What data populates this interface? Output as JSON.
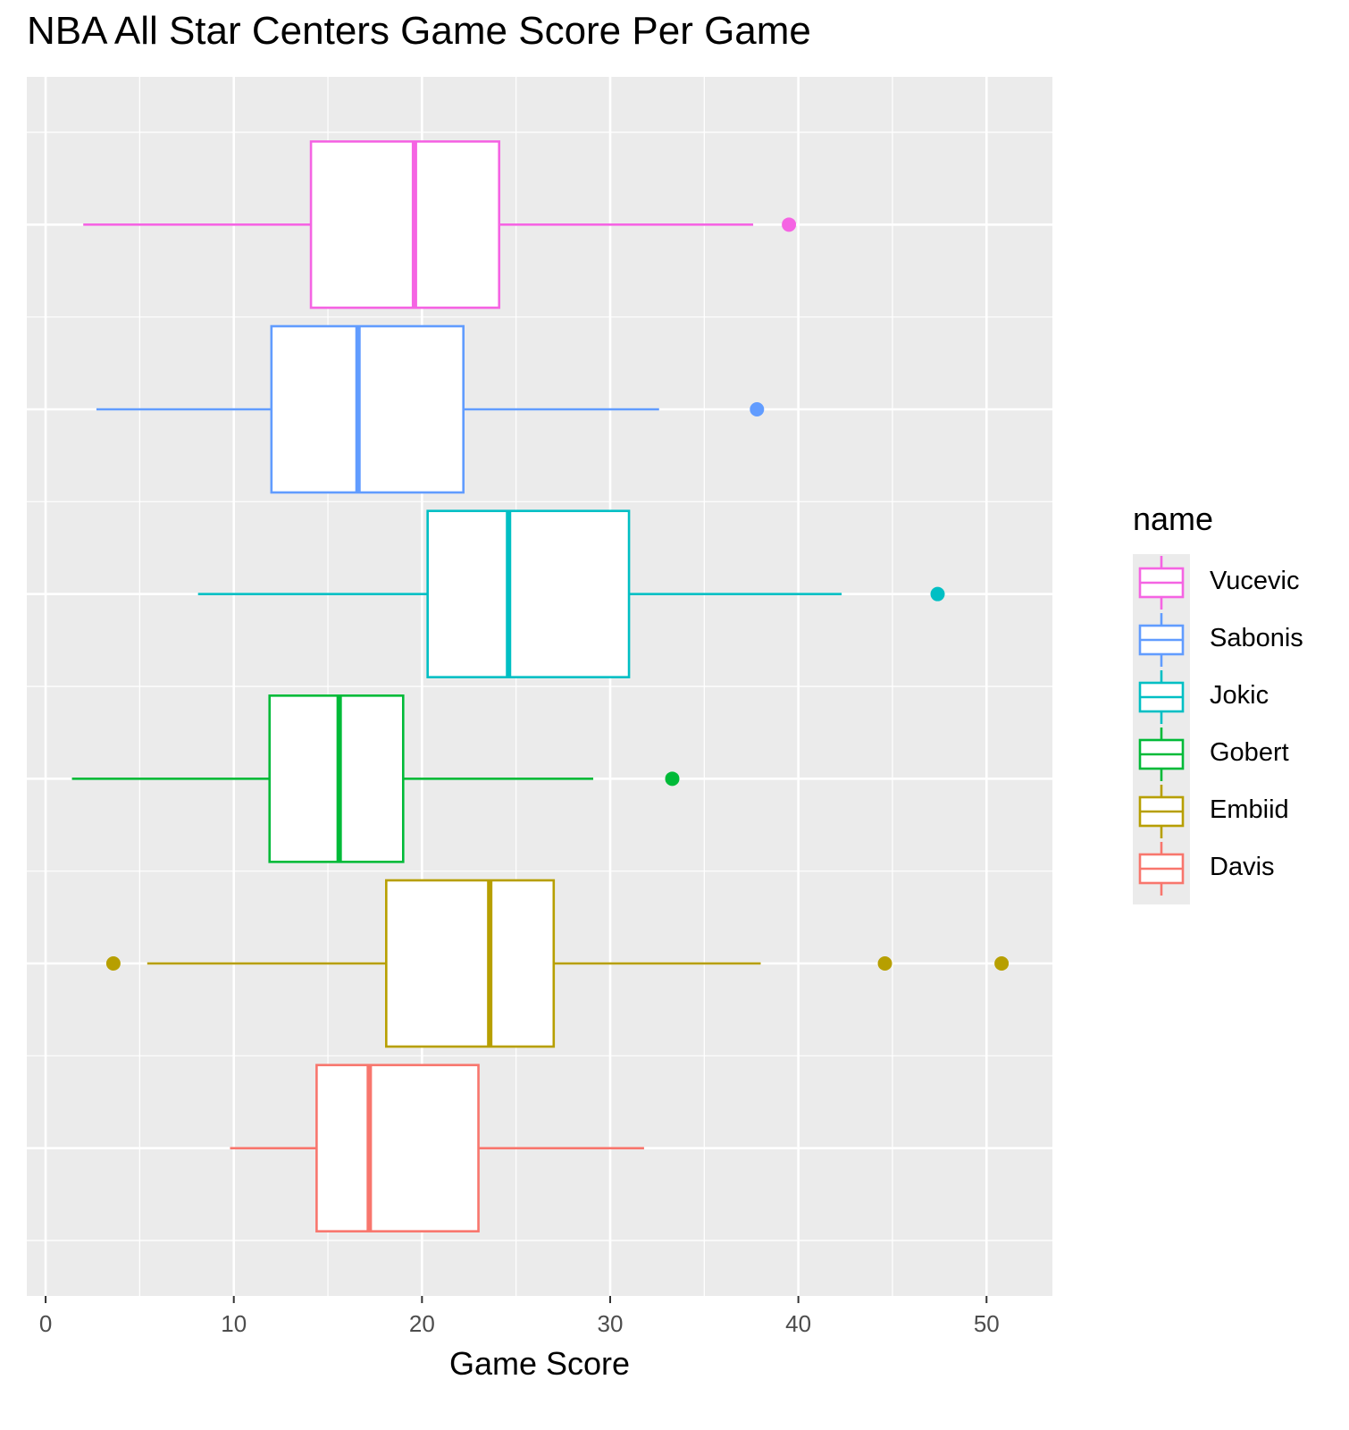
{
  "chart_data": {
    "type": "boxplot",
    "title": "NBA All Star Centers Game Score Per Game",
    "xlabel": "Game Score",
    "ylabel": "",
    "xlim": [
      -1,
      53.5
    ],
    "x_ticks": [
      0,
      10,
      20,
      30,
      40,
      50
    ],
    "grid": true,
    "legend_title": "name",
    "legend_position": "right",
    "series": [
      {
        "name": "Vucevic",
        "color": "#F564E3",
        "whisker_low": 2.0,
        "q1": 14.1,
        "median": 19.6,
        "q3": 24.1,
        "whisker_high": 37.6,
        "outliers": [
          39.5
        ]
      },
      {
        "name": "Sabonis",
        "color": "#619CFF",
        "whisker_low": 2.7,
        "q1": 12.0,
        "median": 16.6,
        "q3": 22.2,
        "whisker_high": 32.6,
        "outliers": [
          37.8
        ]
      },
      {
        "name": "Jokic",
        "color": "#00BFC4",
        "whisker_low": 8.1,
        "q1": 20.3,
        "median": 24.6,
        "q3": 31.0,
        "whisker_high": 42.3,
        "outliers": [
          47.4
        ]
      },
      {
        "name": "Gobert",
        "color": "#00BA38",
        "whisker_low": 1.4,
        "q1": 11.9,
        "median": 15.6,
        "q3": 19.0,
        "whisker_high": 29.1,
        "outliers": [
          33.3
        ]
      },
      {
        "name": "Embiid",
        "color": "#B79F00",
        "whisker_low": 5.4,
        "q1": 18.1,
        "median": 23.6,
        "q3": 27.0,
        "whisker_high": 38.0,
        "outliers": [
          3.6,
          44.6,
          50.8
        ]
      },
      {
        "name": "Davis",
        "color": "#F8766D",
        "whisker_low": 9.8,
        "q1": 14.4,
        "median": 17.2,
        "q3": 23.0,
        "whisker_high": 31.8,
        "outliers": []
      }
    ]
  }
}
